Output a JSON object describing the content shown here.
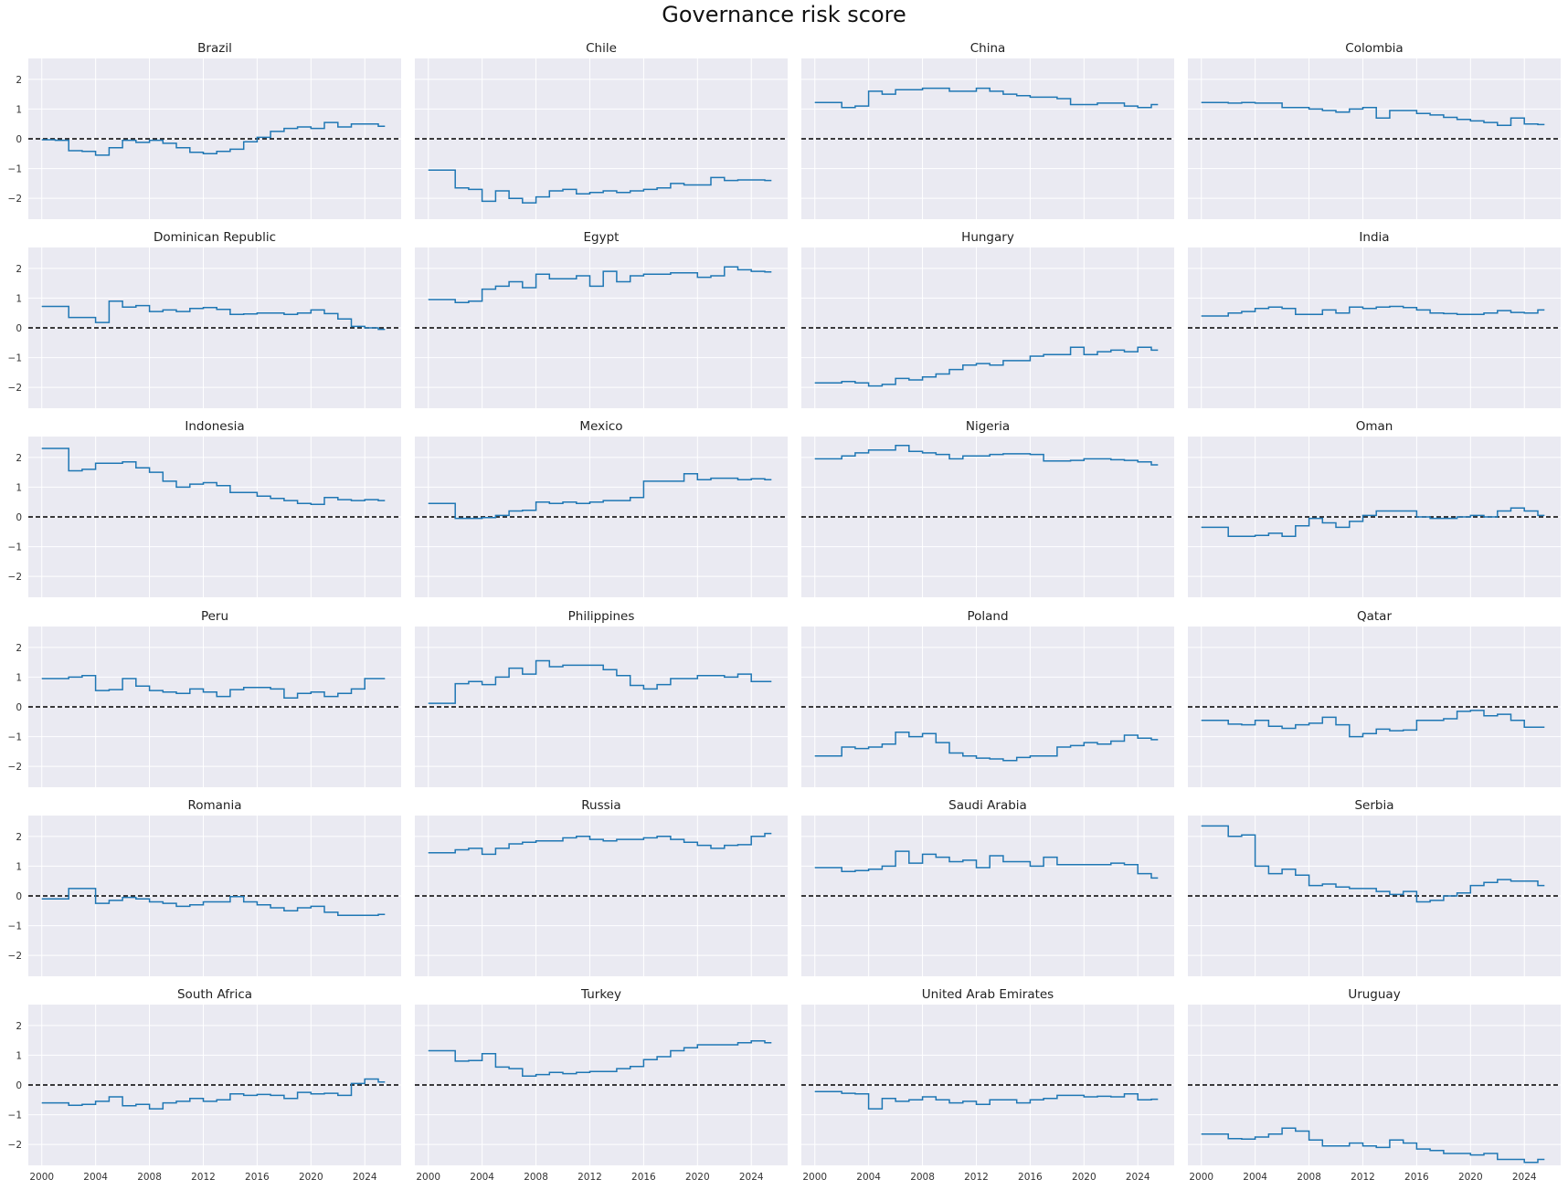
{
  "title": "Governance risk score",
  "chart_data": {
    "type": "line",
    "subtype": "step",
    "layout": {
      "rows": 6,
      "cols": 4,
      "sharex": true,
      "sharey": true
    },
    "xlim": [
      1999,
      2026.7
    ],
    "ylim": [
      -2.7,
      2.7
    ],
    "x_ticks": [
      2000,
      2004,
      2008,
      2012,
      2016,
      2020,
      2024
    ],
    "x_tick_labels": [
      "2000",
      "2004",
      "2008",
      "2012",
      "2016",
      "2020",
      "2024"
    ],
    "y_ticks": [
      -2,
      -1,
      0,
      1,
      2
    ],
    "y_tick_labels": [
      "−2",
      "−1",
      "0",
      "1",
      "2"
    ],
    "reference_line": {
      "y": 0,
      "style": "dashed",
      "color": "#000000"
    },
    "grid": true,
    "colors": {
      "line": "#1f77b4",
      "background": "#eaeaf2",
      "grid": "#ffffff"
    },
    "x": [
      2000,
      2001,
      2002,
      2003,
      2004,
      2005,
      2006,
      2007,
      2008,
      2009,
      2010,
      2011,
      2012,
      2013,
      2014,
      2015,
      2016,
      2017,
      2018,
      2019,
      2020,
      2021,
      2022,
      2023,
      2024,
      2025
    ],
    "series": [
      {
        "name": "Brazil",
        "values": [
          -0.03,
          -0.05,
          -0.4,
          -0.42,
          -0.55,
          -0.3,
          -0.05,
          -0.12,
          -0.05,
          -0.15,
          -0.3,
          -0.45,
          -0.5,
          -0.42,
          -0.35,
          -0.1,
          0.05,
          0.25,
          0.35,
          0.4,
          0.35,
          0.55,
          0.4,
          0.5,
          0.5,
          0.42
        ]
      },
      {
        "name": "Chile",
        "values": [
          -1.05,
          -1.05,
          -1.65,
          -1.7,
          -2.1,
          -1.75,
          -2.0,
          -2.15,
          -1.95,
          -1.75,
          -1.7,
          -1.85,
          -1.8,
          -1.75,
          -1.8,
          -1.75,
          -1.7,
          -1.65,
          -1.5,
          -1.55,
          -1.55,
          -1.3,
          -1.4,
          -1.38,
          -1.38,
          -1.4
        ]
      },
      {
        "name": "China",
        "values": [
          1.22,
          1.22,
          1.05,
          1.1,
          1.6,
          1.5,
          1.65,
          1.65,
          1.7,
          1.7,
          1.6,
          1.6,
          1.7,
          1.6,
          1.5,
          1.45,
          1.4,
          1.4,
          1.35,
          1.15,
          1.15,
          1.2,
          1.2,
          1.1,
          1.05,
          1.15
        ]
      },
      {
        "name": "Colombia",
        "values": [
          1.22,
          1.22,
          1.2,
          1.22,
          1.2,
          1.2,
          1.05,
          1.05,
          1.0,
          0.95,
          0.9,
          1.0,
          1.05,
          0.7,
          0.95,
          0.95,
          0.85,
          0.8,
          0.72,
          0.65,
          0.6,
          0.55,
          0.45,
          0.7,
          0.5,
          0.48
        ]
      },
      {
        "name": "Dominican Republic",
        "values": [
          0.72,
          0.72,
          0.35,
          0.35,
          0.18,
          0.9,
          0.7,
          0.75,
          0.55,
          0.6,
          0.55,
          0.65,
          0.68,
          0.62,
          0.45,
          0.47,
          0.5,
          0.5,
          0.45,
          0.5,
          0.6,
          0.48,
          0.3,
          0.05,
          0.0,
          -0.05
        ]
      },
      {
        "name": "Egypt",
        "values": [
          0.95,
          0.95,
          0.85,
          0.9,
          1.3,
          1.4,
          1.55,
          1.35,
          1.8,
          1.65,
          1.65,
          1.75,
          1.4,
          1.9,
          1.55,
          1.75,
          1.8,
          1.8,
          1.85,
          1.85,
          1.7,
          1.75,
          2.05,
          1.95,
          1.9,
          1.88
        ]
      },
      {
        "name": "Hungary",
        "values": [
          -1.85,
          -1.85,
          -1.8,
          -1.85,
          -1.95,
          -1.9,
          -1.7,
          -1.75,
          -1.65,
          -1.55,
          -1.4,
          -1.25,
          -1.2,
          -1.25,
          -1.1,
          -1.1,
          -0.95,
          -0.9,
          -0.9,
          -0.65,
          -0.9,
          -0.8,
          -0.75,
          -0.8,
          -0.65,
          -0.75
        ]
      },
      {
        "name": "India",
        "values": [
          0.4,
          0.4,
          0.5,
          0.55,
          0.65,
          0.7,
          0.65,
          0.45,
          0.45,
          0.6,
          0.5,
          0.7,
          0.65,
          0.7,
          0.72,
          0.68,
          0.6,
          0.5,
          0.48,
          0.45,
          0.45,
          0.5,
          0.58,
          0.52,
          0.5,
          0.6
        ]
      },
      {
        "name": "Indonesia",
        "values": [
          2.3,
          2.3,
          1.55,
          1.6,
          1.8,
          1.8,
          1.85,
          1.65,
          1.5,
          1.2,
          1.0,
          1.1,
          1.15,
          1.05,
          0.82,
          0.82,
          0.7,
          0.62,
          0.55,
          0.45,
          0.42,
          0.65,
          0.58,
          0.55,
          0.58,
          0.55
        ]
      },
      {
        "name": "Mexico",
        "values": [
          0.45,
          0.45,
          -0.05,
          -0.05,
          -0.02,
          0.05,
          0.2,
          0.22,
          0.5,
          0.45,
          0.5,
          0.45,
          0.5,
          0.55,
          0.55,
          0.65,
          1.2,
          1.2,
          1.2,
          1.45,
          1.25,
          1.3,
          1.3,
          1.25,
          1.28,
          1.25
        ]
      },
      {
        "name": "Nigeria",
        "values": [
          1.95,
          1.95,
          2.05,
          2.15,
          2.25,
          2.25,
          2.4,
          2.2,
          2.15,
          2.1,
          1.95,
          2.05,
          2.05,
          2.1,
          2.12,
          2.12,
          2.1,
          1.88,
          1.88,
          1.9,
          1.95,
          1.95,
          1.92,
          1.9,
          1.85,
          1.75
        ]
      },
      {
        "name": "Oman",
        "values": [
          -0.35,
          -0.35,
          -0.65,
          -0.65,
          -0.62,
          -0.55,
          -0.65,
          -0.3,
          -0.05,
          -0.2,
          -0.35,
          -0.15,
          0.05,
          0.2,
          0.2,
          0.2,
          0.0,
          -0.05,
          -0.05,
          0.0,
          0.05,
          0.0,
          0.2,
          0.3,
          0.2,
          0.05
        ]
      },
      {
        "name": "Peru",
        "values": [
          0.95,
          0.95,
          1.0,
          1.05,
          0.55,
          0.58,
          0.95,
          0.7,
          0.55,
          0.5,
          0.45,
          0.6,
          0.5,
          0.35,
          0.58,
          0.65,
          0.65,
          0.6,
          0.3,
          0.45,
          0.5,
          0.35,
          0.45,
          0.6,
          0.95,
          0.95
        ]
      },
      {
        "name": "Philippines",
        "values": [
          0.12,
          0.12,
          0.78,
          0.85,
          0.75,
          1.0,
          1.3,
          1.1,
          1.55,
          1.35,
          1.4,
          1.4,
          1.4,
          1.25,
          1.05,
          0.72,
          0.6,
          0.75,
          0.95,
          0.95,
          1.05,
          1.05,
          1.0,
          1.1,
          0.85,
          0.85
        ]
      },
      {
        "name": "Poland",
        "values": [
          -1.65,
          -1.65,
          -1.35,
          -1.4,
          -1.35,
          -1.25,
          -0.85,
          -1.0,
          -0.9,
          -1.2,
          -1.55,
          -1.65,
          -1.72,
          -1.75,
          -1.8,
          -1.7,
          -1.65,
          -1.65,
          -1.35,
          -1.3,
          -1.2,
          -1.25,
          -1.15,
          -0.95,
          -1.05,
          -1.1
        ]
      },
      {
        "name": "Qatar",
        "values": [
          -0.45,
          -0.45,
          -0.58,
          -0.6,
          -0.45,
          -0.65,
          -0.72,
          -0.6,
          -0.55,
          -0.35,
          -0.6,
          -1.0,
          -0.9,
          -0.75,
          -0.8,
          -0.78,
          -0.45,
          -0.45,
          -0.4,
          -0.15,
          -0.12,
          -0.3,
          -0.25,
          -0.45,
          -0.68,
          -0.68
        ]
      },
      {
        "name": "Romania",
        "values": [
          -0.1,
          -0.1,
          0.25,
          0.25,
          -0.25,
          -0.15,
          -0.05,
          -0.1,
          -0.2,
          -0.25,
          -0.35,
          -0.3,
          -0.2,
          -0.2,
          -0.02,
          -0.2,
          -0.3,
          -0.4,
          -0.5,
          -0.4,
          -0.35,
          -0.55,
          -0.65,
          -0.65,
          -0.65,
          -0.62
        ]
      },
      {
        "name": "Russia",
        "values": [
          1.45,
          1.45,
          1.55,
          1.6,
          1.4,
          1.6,
          1.75,
          1.8,
          1.85,
          1.85,
          1.95,
          2.0,
          1.9,
          1.85,
          1.9,
          1.9,
          1.95,
          2.0,
          1.9,
          1.8,
          1.7,
          1.6,
          1.7,
          1.72,
          2.0,
          2.1
        ]
      },
      {
        "name": "Saudi Arabia",
        "values": [
          0.95,
          0.95,
          0.82,
          0.85,
          0.9,
          1.0,
          1.5,
          1.1,
          1.4,
          1.3,
          1.15,
          1.2,
          0.95,
          1.35,
          1.15,
          1.15,
          1.0,
          1.3,
          1.05,
          1.05,
          1.05,
          1.05,
          1.1,
          1.05,
          0.75,
          0.6
        ]
      },
      {
        "name": "Serbia",
        "values": [
          2.35,
          2.35,
          2.0,
          2.05,
          1.0,
          0.75,
          0.9,
          0.7,
          0.35,
          0.4,
          0.3,
          0.25,
          0.25,
          0.15,
          0.05,
          0.15,
          -0.2,
          -0.15,
          0.0,
          0.1,
          0.35,
          0.45,
          0.55,
          0.5,
          0.5,
          0.35
        ]
      },
      {
        "name": "South Africa",
        "values": [
          -0.6,
          -0.6,
          -0.68,
          -0.65,
          -0.55,
          -0.4,
          -0.7,
          -0.65,
          -0.8,
          -0.6,
          -0.55,
          -0.45,
          -0.55,
          -0.5,
          -0.3,
          -0.35,
          -0.32,
          -0.35,
          -0.45,
          -0.25,
          -0.3,
          -0.28,
          -0.35,
          0.05,
          0.2,
          0.1
        ]
      },
      {
        "name": "Turkey",
        "values": [
          1.15,
          1.15,
          0.8,
          0.82,
          1.05,
          0.6,
          0.55,
          0.3,
          0.35,
          0.42,
          0.38,
          0.42,
          0.45,
          0.45,
          0.55,
          0.62,
          0.85,
          0.95,
          1.15,
          1.25,
          1.35,
          1.35,
          1.35,
          1.42,
          1.48,
          1.42
        ]
      },
      {
        "name": "United Arab Emirates",
        "values": [
          -0.22,
          -0.22,
          -0.28,
          -0.3,
          -0.8,
          -0.45,
          -0.55,
          -0.5,
          -0.4,
          -0.5,
          -0.6,
          -0.55,
          -0.65,
          -0.5,
          -0.5,
          -0.6,
          -0.5,
          -0.45,
          -0.35,
          -0.35,
          -0.4,
          -0.38,
          -0.4,
          -0.3,
          -0.5,
          -0.48
        ]
      },
      {
        "name": "Uruguay",
        "values": [
          -1.65,
          -1.65,
          -1.8,
          -1.82,
          -1.75,
          -1.65,
          -1.45,
          -1.55,
          -1.85,
          -2.05,
          -2.05,
          -1.95,
          -2.05,
          -2.1,
          -1.85,
          -1.95,
          -2.15,
          -2.2,
          -2.3,
          -2.3,
          -2.35,
          -2.3,
          -2.5,
          -2.5,
          -2.6,
          -2.5
        ]
      }
    ]
  }
}
